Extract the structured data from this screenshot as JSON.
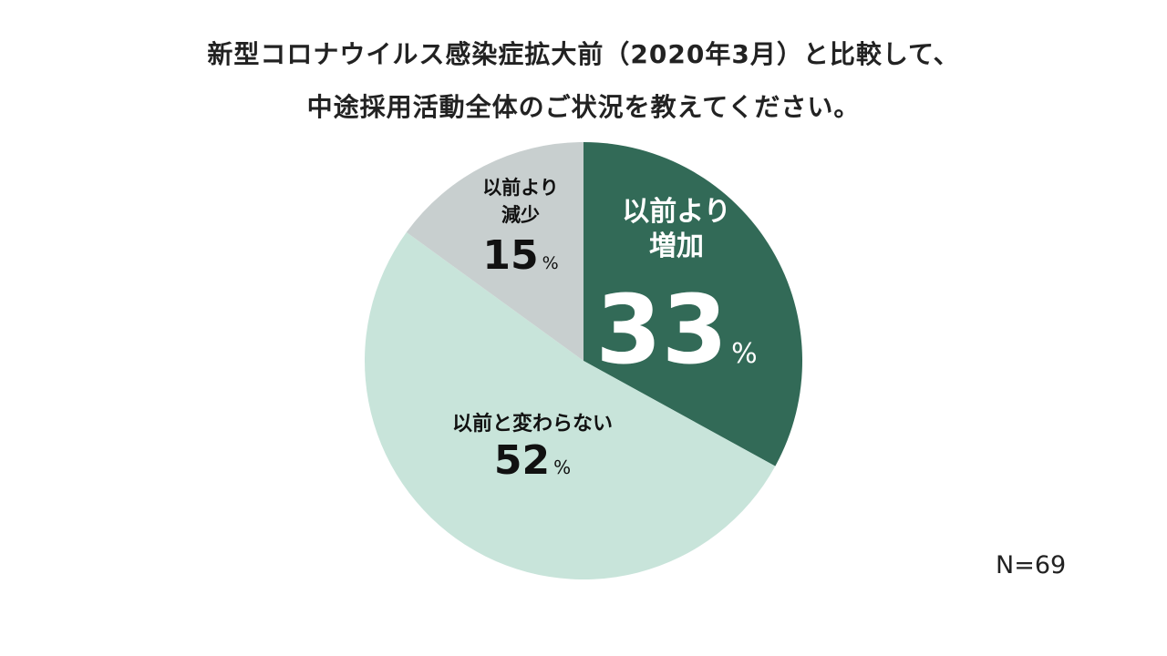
{
  "chart_data": {
    "type": "pie",
    "title_lines": [
      "新型コロナウイルス感染症拡大前（2020年3月）と比較して、",
      "中途採用活動全体のご状況を教えてください。"
    ],
    "slices": [
      {
        "label_lines": [
          "以前より",
          "増加"
        ],
        "value": 33,
        "color": "#326a57",
        "text_color": "#ffffff"
      },
      {
        "label_lines": [
          "以前と変わらない"
        ],
        "value": 52,
        "color": "#c8e4da",
        "text_color": "#111111"
      },
      {
        "label_lines": [
          "以前より",
          "減少"
        ],
        "value": 15,
        "color": "#c8cfcf",
        "text_color": "#111111"
      }
    ],
    "unit": "%",
    "start_angle_deg": 0,
    "direction": "clockwise",
    "note": "N=69"
  }
}
